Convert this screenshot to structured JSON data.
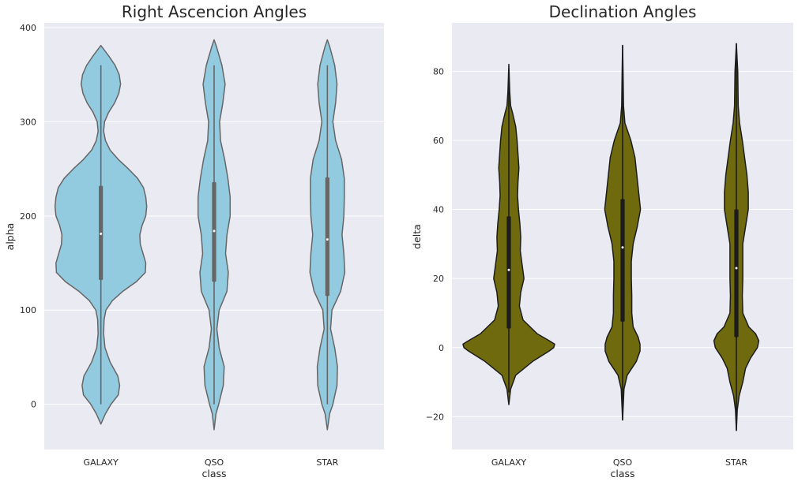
{
  "chart_data": [
    {
      "type": "violin",
      "title": "Right Ascencion Angles",
      "xlabel": "class",
      "ylabel": "alpha",
      "categories": [
        "GALAXY",
        "QSO",
        "STAR"
      ],
      "ylim": [
        -48,
        405
      ],
      "yticks": [
        0,
        100,
        200,
        300,
        400
      ],
      "grid": true,
      "colors": {
        "fill": "#92cae0",
        "edge": "#666666",
        "box": "#666666",
        "median": "#ffffff"
      },
      "violins": [
        {
          "name": "GALAXY",
          "whisker": [
            0,
            360
          ],
          "q1": 132,
          "median": 181,
          "q3": 232,
          "extent": [
            -21,
            381
          ],
          "profile": [
            [
              -21,
              0
            ],
            [
              -10,
              0.1
            ],
            [
              0,
              0.22
            ],
            [
              10,
              0.38
            ],
            [
              20,
              0.41
            ],
            [
              30,
              0.37
            ],
            [
              45,
              0.2
            ],
            [
              60,
              0.09
            ],
            [
              75,
              0.06
            ],
            [
              90,
              0.07
            ],
            [
              100,
              0.11
            ],
            [
              110,
              0.25
            ],
            [
              120,
              0.48
            ],
            [
              130,
              0.77
            ],
            [
              140,
              0.97
            ],
            [
              150,
              0.98
            ],
            [
              160,
              0.92
            ],
            [
              170,
              0.86
            ],
            [
              180,
              0.85
            ],
            [
              190,
              0.9
            ],
            [
              200,
              0.98
            ],
            [
              210,
              1.0
            ],
            [
              220,
              0.98
            ],
            [
              230,
              0.93
            ],
            [
              240,
              0.8
            ],
            [
              250,
              0.6
            ],
            [
              260,
              0.38
            ],
            [
              270,
              0.2
            ],
            [
              280,
              0.1
            ],
            [
              290,
              0.06
            ],
            [
              300,
              0.08
            ],
            [
              310,
              0.17
            ],
            [
              320,
              0.3
            ],
            [
              330,
              0.39
            ],
            [
              340,
              0.43
            ],
            [
              350,
              0.4
            ],
            [
              360,
              0.31
            ],
            [
              370,
              0.17
            ],
            [
              381,
              0
            ]
          ]
        },
        {
          "name": "QSO",
          "whisker": [
            0,
            360
          ],
          "q1": 130,
          "median": 184,
          "q3": 236,
          "extent": [
            -27,
            387
          ],
          "profile": [
            [
              -27,
              0
            ],
            [
              -10,
              0.04
            ],
            [
              0,
              0.1
            ],
            [
              20,
              0.2
            ],
            [
              40,
              0.22
            ],
            [
              60,
              0.11
            ],
            [
              80,
              0.06
            ],
            [
              100,
              0.11
            ],
            [
              120,
              0.28
            ],
            [
              140,
              0.31
            ],
            [
              160,
              0.25
            ],
            [
              180,
              0.28
            ],
            [
              200,
              0.35
            ],
            [
              220,
              0.35
            ],
            [
              240,
              0.3
            ],
            [
              260,
              0.23
            ],
            [
              280,
              0.14
            ],
            [
              300,
              0.12
            ],
            [
              320,
              0.19
            ],
            [
              340,
              0.24
            ],
            [
              360,
              0.17
            ],
            [
              380,
              0.05
            ],
            [
              387,
              0
            ]
          ]
        },
        {
          "name": "STAR",
          "whisker": [
            0,
            360
          ],
          "q1": 115,
          "median": 175,
          "q3": 241,
          "extent": [
            -27,
            387
          ],
          "profile": [
            [
              -27,
              0
            ],
            [
              -10,
              0.05
            ],
            [
              0,
              0.12
            ],
            [
              20,
              0.21
            ],
            [
              40,
              0.22
            ],
            [
              60,
              0.16
            ],
            [
              80,
              0.07
            ],
            [
              100,
              0.1
            ],
            [
              120,
              0.29
            ],
            [
              140,
              0.38
            ],
            [
              160,
              0.36
            ],
            [
              180,
              0.32
            ],
            [
              200,
              0.36
            ],
            [
              220,
              0.37
            ],
            [
              240,
              0.37
            ],
            [
              260,
              0.31
            ],
            [
              280,
              0.18
            ],
            [
              300,
              0.12
            ],
            [
              320,
              0.18
            ],
            [
              340,
              0.21
            ],
            [
              360,
              0.16
            ],
            [
              380,
              0.05
            ],
            [
              387,
              0
            ]
          ]
        }
      ]
    },
    {
      "type": "violin",
      "title": "Declination Angles",
      "xlabel": "class",
      "ylabel": "delta",
      "categories": [
        "GALAXY",
        "QSO",
        "STAR"
      ],
      "ylim": [
        -29.5,
        94
      ],
      "yticks": [
        -20,
        0,
        20,
        40,
        60,
        80
      ],
      "grid": true,
      "colors": {
        "fill": "#6f6a0e",
        "edge": "#1c1c1c",
        "box": "#1c1c1c",
        "median": "#ffffff"
      },
      "violins": [
        {
          "name": "GALAXY",
          "whisker": [
            -13,
            77
          ],
          "q1": 5.5,
          "median": 22.5,
          "q3": 38,
          "extent": [
            -16.5,
            82
          ],
          "profile": [
            [
              -16.5,
              0
            ],
            [
              -12,
              0.04
            ],
            [
              -8,
              0.15
            ],
            [
              -4,
              0.52
            ],
            [
              -1,
              0.88
            ],
            [
              0,
              0.98
            ],
            [
              1,
              1.0
            ],
            [
              2,
              0.88
            ],
            [
              4,
              0.62
            ],
            [
              8,
              0.31
            ],
            [
              12,
              0.23
            ],
            [
              16,
              0.26
            ],
            [
              20,
              0.33
            ],
            [
              24,
              0.29
            ],
            [
              28,
              0.25
            ],
            [
              32,
              0.26
            ],
            [
              36,
              0.24
            ],
            [
              40,
              0.21
            ],
            [
              44,
              0.19
            ],
            [
              48,
              0.2
            ],
            [
              52,
              0.22
            ],
            [
              56,
              0.2
            ],
            [
              60,
              0.18
            ],
            [
              64,
              0.15
            ],
            [
              68,
              0.08
            ],
            [
              70,
              0.04
            ],
            [
              74,
              0.02
            ],
            [
              78,
              0.01
            ],
            [
              82,
              0
            ]
          ]
        },
        {
          "name": "QSO",
          "whisker": [
            -21,
            87.5
          ],
          "q1": 7.5,
          "median": 29,
          "q3": 43,
          "extent": [
            -21,
            87.5
          ],
          "profile": [
            [
              -21,
              0
            ],
            [
              -12,
              0.03
            ],
            [
              -8,
              0.1
            ],
            [
              -4,
              0.3
            ],
            [
              -1,
              0.38
            ],
            [
              1,
              0.38
            ],
            [
              3,
              0.34
            ],
            [
              6,
              0.23
            ],
            [
              10,
              0.2
            ],
            [
              15,
              0.2
            ],
            [
              20,
              0.19
            ],
            [
              25,
              0.19
            ],
            [
              30,
              0.23
            ],
            [
              35,
              0.32
            ],
            [
              40,
              0.39
            ],
            [
              45,
              0.35
            ],
            [
              50,
              0.31
            ],
            [
              55,
              0.27
            ],
            [
              60,
              0.18
            ],
            [
              65,
              0.05
            ],
            [
              70,
              0.02
            ],
            [
              80,
              0.01
            ],
            [
              87.5,
              0
            ]
          ]
        },
        {
          "name": "STAR",
          "whisker": [
            -24,
            88
          ],
          "q1": 3,
          "median": 23,
          "q3": 40,
          "extent": [
            -24,
            88
          ],
          "profile": [
            [
              -24,
              0
            ],
            [
              -18,
              0.02
            ],
            [
              -14,
              0.06
            ],
            [
              -10,
              0.14
            ],
            [
              -6,
              0.2
            ],
            [
              -3,
              0.31
            ],
            [
              0,
              0.46
            ],
            [
              2,
              0.49
            ],
            [
              4,
              0.42
            ],
            [
              6,
              0.27
            ],
            [
              10,
              0.14
            ],
            [
              15,
              0.13
            ],
            [
              20,
              0.14
            ],
            [
              25,
              0.14
            ],
            [
              30,
              0.14
            ],
            [
              35,
              0.2
            ],
            [
              40,
              0.26
            ],
            [
              45,
              0.26
            ],
            [
              50,
              0.23
            ],
            [
              55,
              0.18
            ],
            [
              60,
              0.13
            ],
            [
              65,
              0.07
            ],
            [
              70,
              0.04
            ],
            [
              80,
              0.03
            ],
            [
              88,
              0
            ]
          ]
        }
      ]
    }
  ]
}
